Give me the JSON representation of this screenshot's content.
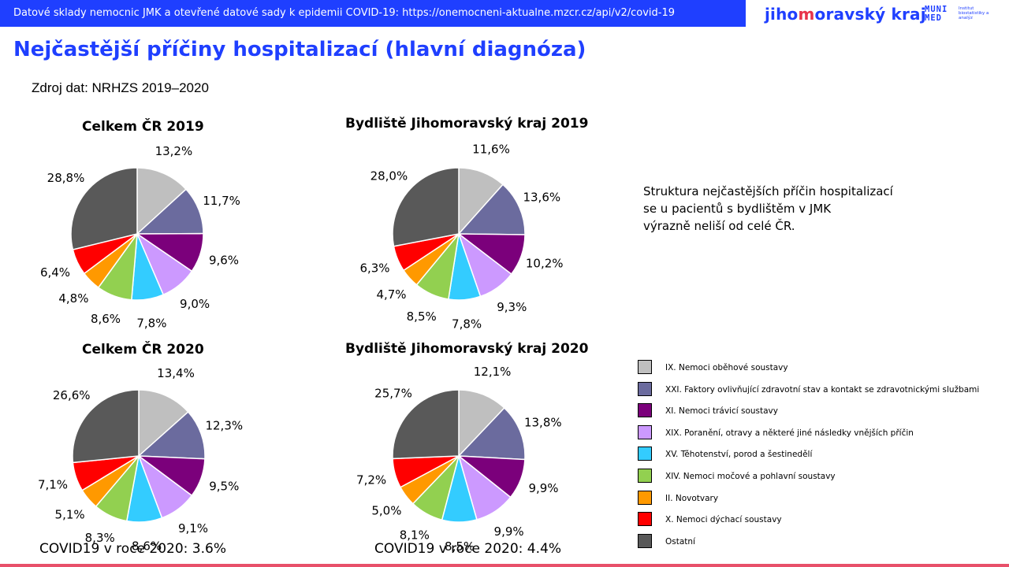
{
  "header": {
    "text": "Datové sklady nemocnic JMK a otevřené datové sady k epidemii COVID-19: https://onemocneni-aktualne.mzcr.cz/api/v2/covid-19",
    "logo_left": "jiho",
    "logo_mid": "m",
    "logo_right": "oravský kraj",
    "muni": "MUNI",
    "med": "MED",
    "inst": "Institut biostatistiky a analýz"
  },
  "title": "Nejčastější příčiny hospitalizací (hlavní diagnóza)",
  "source": "Zdroj dat:  NRHZS 2019–2020",
  "note": [
    "Struktura nejčastějších  příčin hospitalizací",
    "se u pacientů s bydlištěm v JMK",
    "výrazně neliší od celé ČR."
  ],
  "covid": {
    "cr": "COVID19 v roce 2020: 3.6%",
    "jmk": "COVID19 v roce 2020: 4.4%"
  },
  "colors": [
    "#bfbfbf",
    "#6b6b9e",
    "#7b007b",
    "#cc99ff",
    "#33ccff",
    "#92d050",
    "#ff9900",
    "#ff0000",
    "#595959"
  ],
  "legend": [
    "IX. Nemoci oběhové  soustavy",
    "XXI. Faktory ovlivňující zdravotní stav a kontakt se zdravotnickými službami",
    "XI. Nemoci trávicí soustavy",
    "XIX. Poranění, otravy a některé  jiné následky vnějších příčin",
    "XV. Těhotenství,  porod a šestinedělí",
    "XIV. Nemoci  močové a pohlavní soustavy",
    "II. Novotvary",
    "X. Nemoci  dýchací soustavy",
    "Ostatní"
  ],
  "chart_data": [
    {
      "type": "pie",
      "title": "Celkem ČR 2019",
      "categories": [
        "IX. Nemoci oběhové  soustavy",
        "XXI. Faktory ovlivňující zdravotní stav a kontakt se zdravotnickými službami",
        "XI. Nemoci trávicí soustavy",
        "XIX. Poranění, otravy a některé  jiné následky vnějších příčin",
        "XV. Těhotenství,  porod a šestinedělí",
        "XIV. Nemoci  močové a pohlavní soustavy",
        "II. Novotvary",
        "X. Nemoci  dýchací soustavy",
        "Ostatní"
      ],
      "values": [
        13.2,
        11.7,
        9.6,
        9.0,
        7.8,
        8.6,
        4.8,
        6.4,
        28.8
      ],
      "labels": [
        "13,2%",
        "11,7%",
        "9,6%",
        "9,0%",
        "7,8%",
        "8,6%",
        "4,8%",
        "6,4%",
        "28,8%"
      ]
    },
    {
      "type": "pie",
      "title": "Bydliště Jihomoravský  kraj 2019",
      "categories": [
        "IX. Nemoci oběhové  soustavy",
        "XXI. Faktory ovlivňující zdravotní stav a kontakt se zdravotnickými službami",
        "XI. Nemoci trávicí soustavy",
        "XIX. Poranění, otravy a některé  jiné následky vnějších příčin",
        "XV. Těhotenství,  porod a šestinedělí",
        "XIV. Nemoci  močové a pohlavní soustavy",
        "II. Novotvary",
        "X. Nemoci  dýchací soustavy",
        "Ostatní"
      ],
      "values": [
        11.6,
        13.6,
        10.2,
        9.3,
        7.8,
        8.5,
        4.7,
        6.3,
        28.0
      ],
      "labels": [
        "11,6%",
        "13,6%",
        "10,2%",
        "9,3%",
        "7,8%",
        "8,5%",
        "4,7%",
        "6,3%",
        "28,0%"
      ]
    },
    {
      "type": "pie",
      "title": "Celkem ČR 2020",
      "categories": [
        "IX. Nemoci oběhové  soustavy",
        "XXI. Faktory ovlivňující zdravotní stav a kontakt se zdravotnickými službami",
        "XI. Nemoci trávicí soustavy",
        "XIX. Poranění, otravy a některé  jiné následky vnějších příčin",
        "XV. Těhotenství,  porod a šestinedělí",
        "XIV. Nemoci  močové a pohlavní soustavy",
        "II. Novotvary",
        "X. Nemoci  dýchací soustavy",
        "Ostatní"
      ],
      "values": [
        13.4,
        12.3,
        9.5,
        9.1,
        8.6,
        8.3,
        5.1,
        7.1,
        26.6
      ],
      "labels": [
        "13,4%",
        "12,3%",
        "9,5%",
        "9,1%",
        "8,6%",
        "8,3%",
        "5,1%",
        "7,1%",
        "26,6%"
      ]
    },
    {
      "type": "pie",
      "title": "Bydliště Jihomoravský  kraj 2020",
      "categories": [
        "IX. Nemoci oběhové  soustavy",
        "XXI. Faktory ovlivňující zdravotní stav a kontakt se zdravotnickými službami",
        "XI. Nemoci trávicí soustavy",
        "XIX. Poranění, otravy a některé  jiné následky vnějších příčin",
        "XV. Těhotenství,  porod a šestinedělí",
        "XIV. Nemoci  močové a pohlavní soustavy",
        "II. Novotvary",
        "X. Nemoci  dýchací soustavy",
        "Ostatní"
      ],
      "values": [
        12.1,
        13.8,
        9.9,
        9.9,
        8.5,
        8.1,
        5.0,
        7.2,
        25.7
      ],
      "labels": [
        "12,1%",
        "13,8%",
        "9,9%",
        "9,9%",
        "8,5%",
        "8,1%",
        "5,0%",
        "7,2%",
        "25,7%"
      ]
    }
  ]
}
